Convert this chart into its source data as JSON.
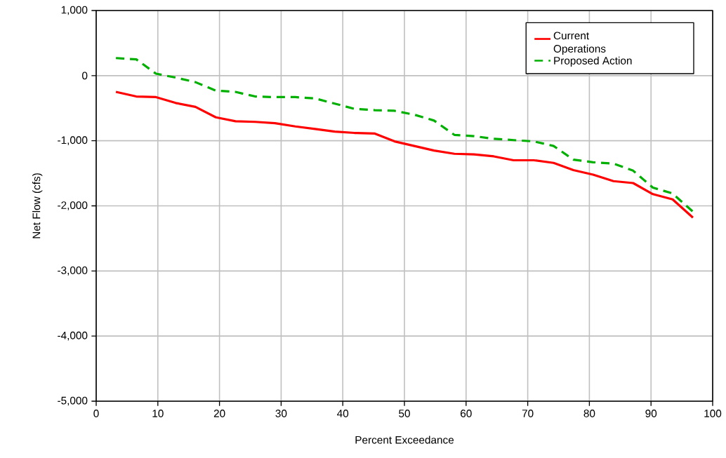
{
  "chart_data": {
    "type": "line",
    "xlabel": "Percent Exceedance",
    "ylabel": "Net Flow (cfs)",
    "x": [
      3.2,
      6.5,
      9.7,
      12.9,
      16.1,
      19.4,
      22.6,
      25.8,
      29.0,
      32.3,
      35.5,
      38.7,
      41.9,
      45.2,
      48.4,
      51.6,
      54.8,
      58.1,
      61.3,
      64.5,
      67.7,
      71.0,
      74.2,
      77.4,
      80.6,
      83.9,
      87.1,
      90.3,
      93.5,
      96.8
    ],
    "series": [
      {
        "name": "Current Operations",
        "color": "#ff0000",
        "line_style": "solid",
        "values": [
          -250,
          -320,
          -330,
          -420,
          -480,
          -640,
          -700,
          -710,
          -730,
          -780,
          -820,
          -860,
          -880,
          -890,
          -1010,
          -1080,
          -1150,
          -1200,
          -1210,
          -1240,
          -1300,
          -1300,
          -1340,
          -1450,
          -1520,
          -1620,
          -1650,
          -1820,
          -1900,
          -2180
        ]
      },
      {
        "name": "Proposed Action",
        "color": "#00b000",
        "line_style": "dashed",
        "values": [
          270,
          250,
          30,
          -30,
          -100,
          -230,
          -250,
          -320,
          -330,
          -330,
          -350,
          -430,
          -510,
          -530,
          -540,
          -600,
          -690,
          -910,
          -930,
          -970,
          -990,
          -1010,
          -1080,
          -1290,
          -1330,
          -1350,
          -1460,
          -1720,
          -1810,
          -2090
        ]
      }
    ],
    "xlim": [
      0,
      100
    ],
    "xticks": [
      0,
      10,
      20,
      30,
      40,
      50,
      60,
      70,
      80,
      90,
      100
    ],
    "ylim": [
      -5000,
      1000
    ],
    "yticks": [
      {
        "value": -5000,
        "label": "-5,000"
      },
      {
        "value": -4000,
        "label": "-4,000"
      },
      {
        "value": -3000,
        "label": "-3,000"
      },
      {
        "value": -2000,
        "label": "-2,000"
      },
      {
        "value": -1000,
        "label": "-1,000"
      },
      {
        "value": 0,
        "label": "0"
      },
      {
        "value": 1000,
        "label": "1,000"
      }
    ],
    "grid": true,
    "legend": "top right",
    "marker": "none"
  }
}
